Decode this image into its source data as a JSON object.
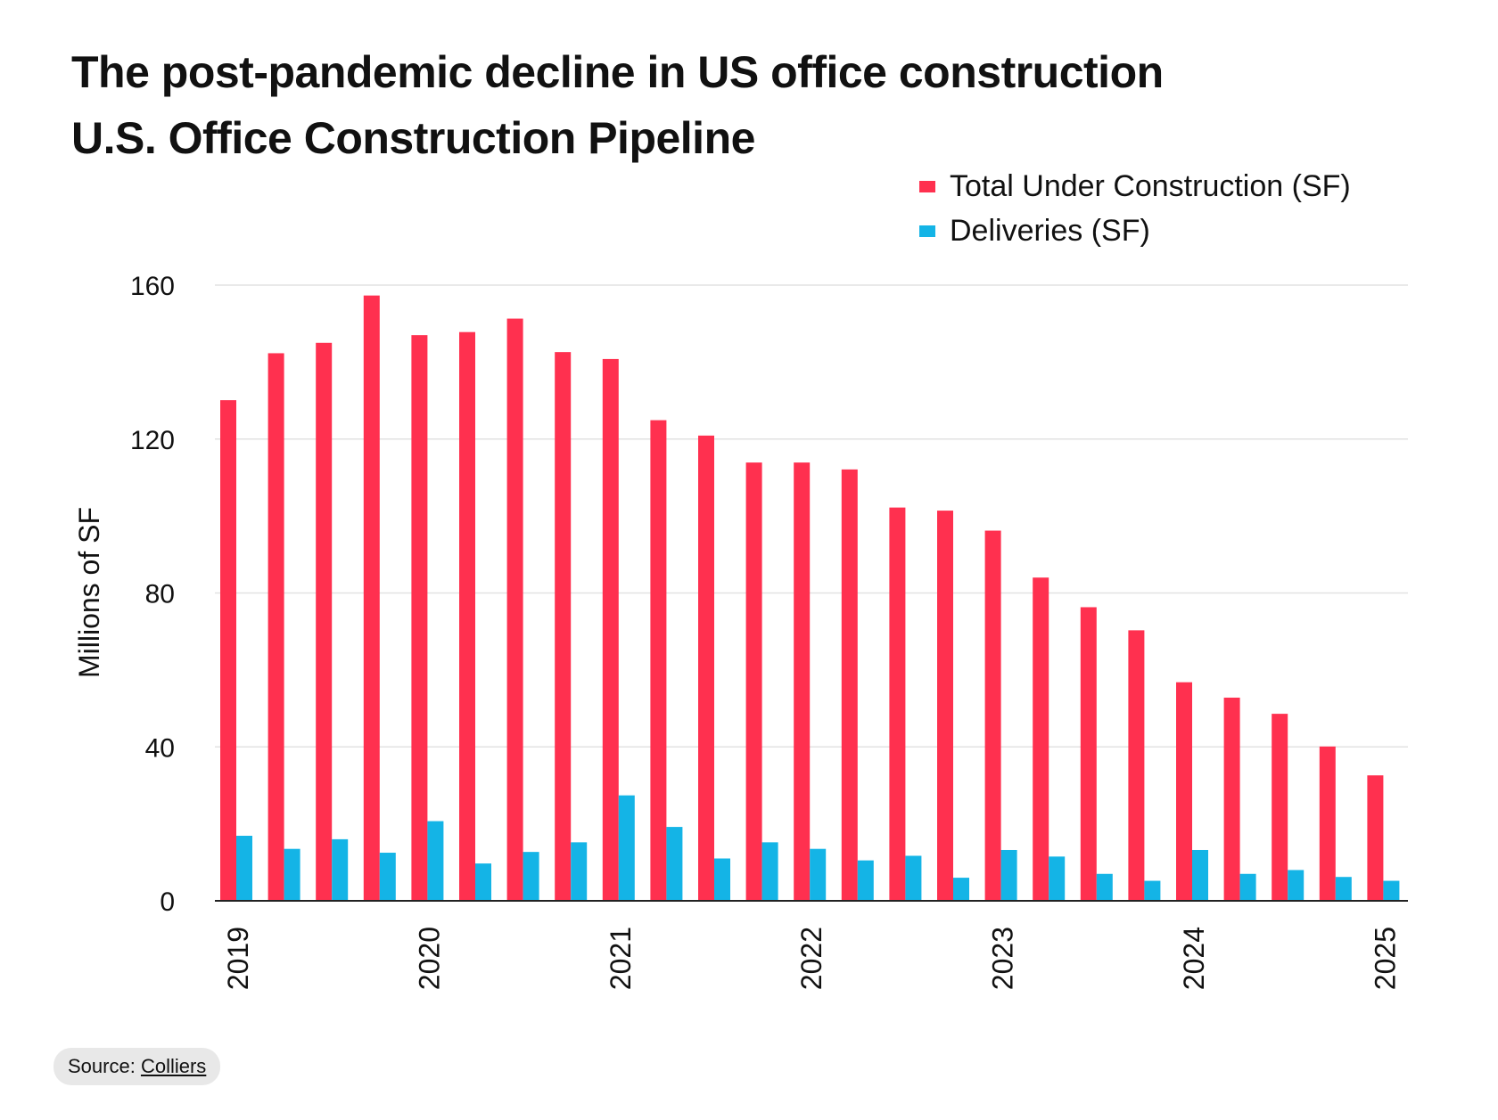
{
  "chart_data": {
    "type": "bar",
    "title": "The post-pandemic decline in US office construction",
    "subtitle": "U.S. Office Construction Pipeline",
    "ylabel": "Millions of SF",
    "xlabel": "",
    "ylim": [
      0,
      160
    ],
    "yticks": [
      "0",
      "40",
      "80",
      "120",
      "160"
    ],
    "grid": true,
    "legend_position": "top-right",
    "categories": [
      "2019",
      "",
      "",
      "",
      "2020",
      "",
      "",
      "",
      "2021",
      "",
      "",
      "",
      "2022",
      "",
      "",
      "",
      "2023",
      "",
      "",
      "",
      "2024",
      "",
      "",
      "",
      "2025"
    ],
    "series": [
      {
        "name": "Total Under Construction (SF)",
        "color": "#ff304f",
        "values": [
          130.1,
          142.3,
          145.0,
          157.3,
          147.0,
          147.8,
          151.3,
          142.6,
          140.8,
          124.9,
          120.9,
          113.9,
          113.9,
          112.1,
          102.2,
          101.4,
          96.2,
          84.0,
          76.3,
          70.3,
          56.8,
          52.8,
          48.6,
          40.1,
          32.6
        ]
      },
      {
        "name": "Deliveries (SF)",
        "color": "#14b4e6",
        "values": [
          16.9,
          13.5,
          16.0,
          12.5,
          20.7,
          9.7,
          12.7,
          15.2,
          27.4,
          19.2,
          11.0,
          15.2,
          13.5,
          10.5,
          11.7,
          6.0,
          13.2,
          11.5,
          7.0,
          5.2,
          13.2,
          7.0,
          8.0,
          6.2,
          5.2
        ]
      }
    ]
  },
  "source": {
    "label": "Source:",
    "link": "Colliers"
  }
}
